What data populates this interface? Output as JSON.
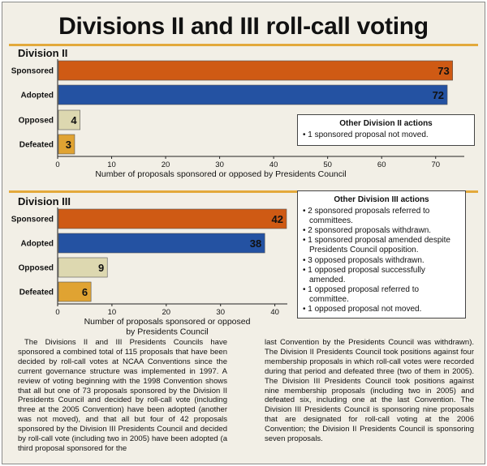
{
  "title": "Divisions II and III roll-call voting",
  "colors": {
    "Sponsored": "#cf5a14",
    "Adopted": "#2452a2",
    "Opposed": "#ddd8b0",
    "Defeated": "#e0a332",
    "rule": "#e3a93b"
  },
  "chart_data": [
    {
      "type": "bar",
      "orientation": "horizontal",
      "title": "Division II",
      "categories": [
        "Sponsored",
        "Adopted",
        "Opposed",
        "Defeated"
      ],
      "values": [
        73,
        72,
        4,
        3
      ],
      "xlabel": "Number of proposals sponsored or opposed by Presidents Council",
      "xlim": [
        0,
        75
      ],
      "xticks": [
        0,
        10,
        20,
        30,
        40,
        50,
        60,
        70
      ],
      "grid": false
    },
    {
      "type": "bar",
      "orientation": "horizontal",
      "title": "Division III",
      "categories": [
        "Sponsored",
        "Adopted",
        "Opposed",
        "Defeated"
      ],
      "values": [
        42,
        38,
        9,
        6
      ],
      "xlabel_lines": [
        "Number of proposals sponsored or opposed",
        "by Presidents Council"
      ],
      "xlim": [
        0,
        42
      ],
      "xticks": [
        0,
        10,
        20,
        30,
        40
      ],
      "grid": false
    }
  ],
  "div2_note": {
    "heading": "Other Division II actions",
    "items": [
      "1 sponsored proposal not moved."
    ]
  },
  "div3_note": {
    "heading": "Other Division III actions",
    "items": [
      "2 sponsored proposals referred to committees.",
      "2 sponsored proposals withdrawn.",
      "1 sponsored proposal amended despite Presidents Council opposition.",
      "3 opposed proposals withdrawn.",
      "1 opposed proposal successfully amended.",
      "1 opposed proposal referred to committee.",
      "1 opposed proposal not moved."
    ]
  },
  "body": {
    "left": "The Divisions II and III Presidents Councils have sponsored a combined total of 115 proposals that have been decided by roll-call votes at NCAA Conventions since the current governance structure was implemented in 1997. A review of voting beginning with the 1998 Convention shows that all but one of 73 proposals sponsored by the Division II Presidents Council and decided by roll-call vote (including three at the 2005 Convention) have been adopted (another was not moved), and that all but four of 42 proposals sponsored by the Division III Presidents Council and decided by roll-call vote (including two in 2005) have been adopted (a third proposal sponsored for the",
    "right": "last Convention by the Presidents Council was withdrawn). The Division II Presidents Council took positions against four membership proposals in which roll-call votes were recorded during that period and defeated three (two of them in 2005). The Division III Presidents Council took positions against nine membership proposals (including two in 2005) and defeated six, including one at the last Convention. The Division III Presidents Council is sponsoring nine proposals that are designated for roll-call voting at the 2006 Convention; the Division II Presidents Council is sponsoring seven proposals."
  }
}
